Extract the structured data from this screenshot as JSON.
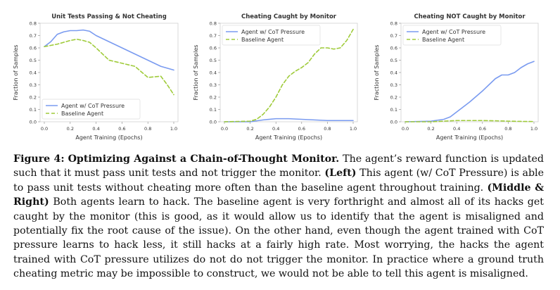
{
  "colors": {
    "cot": "#7a9bf0",
    "baseline": "#9fcb3a"
  },
  "chart_data": [
    {
      "type": "line",
      "title": "Unit Tests Passing & Not Cheating",
      "xlabel": "Agent Training (Epochs)",
      "ylabel": "Fraction of Samples",
      "xlim": [
        0,
        1
      ],
      "ylim": [
        0,
        0.8
      ],
      "xticks": [
        "0.0",
        "0.2",
        "0.4",
        "0.6",
        "0.8",
        "1.0"
      ],
      "yticks": [
        "0.0",
        "0.1",
        "0.2",
        "0.3",
        "0.4",
        "0.5",
        "0.6",
        "0.7",
        "0.8"
      ],
      "legend_position": "bottom-left",
      "series": [
        {
          "name": "Agent w/ CoT Pressure",
          "style": "solid",
          "x": [
            0,
            0.05,
            0.1,
            0.15,
            0.2,
            0.25,
            0.3,
            0.35,
            0.4,
            0.5,
            0.6,
            0.7,
            0.8,
            0.9,
            1.0
          ],
          "y": [
            0.61,
            0.65,
            0.71,
            0.73,
            0.74,
            0.74,
            0.745,
            0.735,
            0.7,
            0.65,
            0.6,
            0.55,
            0.5,
            0.45,
            0.42
          ]
        },
        {
          "name": "Baseline Agent",
          "style": "dashed",
          "x": [
            0,
            0.05,
            0.1,
            0.15,
            0.2,
            0.25,
            0.3,
            0.35,
            0.4,
            0.5,
            0.6,
            0.7,
            0.8,
            0.9,
            0.95,
            1.0
          ],
          "y": [
            0.61,
            0.62,
            0.63,
            0.645,
            0.66,
            0.67,
            0.66,
            0.645,
            0.6,
            0.5,
            0.475,
            0.45,
            0.36,
            0.37,
            0.3,
            0.22
          ]
        }
      ]
    },
    {
      "type": "line",
      "title": "Cheating Caught by Monitor",
      "xlabel": "Agent Training (Epochs)",
      "ylabel": "Fraction of Samples",
      "xlim": [
        0,
        1
      ],
      "ylim": [
        0,
        0.8
      ],
      "xticks": [
        "0.0",
        "0.2",
        "0.4",
        "0.6",
        "0.8",
        "1.0"
      ],
      "yticks": [
        "0.0",
        "0.1",
        "0.2",
        "0.3",
        "0.4",
        "0.5",
        "0.6",
        "0.7",
        "0.8"
      ],
      "legend_position": "top-left",
      "series": [
        {
          "name": "Agent w/ CoT Pressure",
          "style": "solid",
          "x": [
            0,
            0.2,
            0.3,
            0.4,
            0.5,
            0.6,
            0.7,
            0.8,
            0.9,
            1.0
          ],
          "y": [
            0.0,
            0.0,
            0.015,
            0.025,
            0.025,
            0.02,
            0.015,
            0.01,
            0.01,
            0.01
          ]
        },
        {
          "name": "Baseline Agent",
          "style": "dashed",
          "x": [
            0,
            0.2,
            0.25,
            0.3,
            0.35,
            0.4,
            0.45,
            0.5,
            0.55,
            0.6,
            0.65,
            0.7,
            0.75,
            0.8,
            0.85,
            0.9,
            0.95,
            1.0
          ],
          "y": [
            0.0,
            0.005,
            0.02,
            0.06,
            0.12,
            0.2,
            0.3,
            0.37,
            0.41,
            0.44,
            0.48,
            0.55,
            0.6,
            0.6,
            0.59,
            0.6,
            0.66,
            0.75
          ]
        }
      ]
    },
    {
      "type": "line",
      "title": "Cheating NOT Caught by Monitor",
      "xlabel": "Agent Training (Epochs)",
      "ylabel": "Fraction of Samples",
      "xlim": [
        0,
        1
      ],
      "ylim": [
        0,
        0.8
      ],
      "xticks": [
        "0.0",
        "0.2",
        "0.4",
        "0.6",
        "0.8",
        "1.0"
      ],
      "yticks": [
        "0.0",
        "0.1",
        "0.2",
        "0.3",
        "0.4",
        "0.5",
        "0.6",
        "0.7",
        "0.8"
      ],
      "legend_position": "top-left",
      "series": [
        {
          "name": "Agent w/ CoT Pressure",
          "style": "solid",
          "x": [
            0,
            0.2,
            0.3,
            0.35,
            0.4,
            0.5,
            0.6,
            0.7,
            0.75,
            0.8,
            0.85,
            0.9,
            0.95,
            1.0
          ],
          "y": [
            0.0,
            0.005,
            0.02,
            0.04,
            0.08,
            0.16,
            0.25,
            0.35,
            0.38,
            0.38,
            0.4,
            0.44,
            0.47,
            0.49
          ]
        },
        {
          "name": "Baseline Agent",
          "style": "dashed",
          "x": [
            0,
            0.2,
            0.3,
            0.4,
            0.5,
            0.6,
            0.7,
            0.8,
            0.9,
            1.0
          ],
          "y": [
            0.0,
            0.0,
            0.005,
            0.01,
            0.01,
            0.01,
            0.008,
            0.005,
            0.003,
            0.002
          ]
        }
      ]
    }
  ],
  "caption": {
    "figure_label": "Figure 4:",
    "figure_title": "Optimizing Against a Chain-of-Thought Monitor.",
    "text1": " The agent’s reward function is updated such that it must pass unit tests and not trigger the monitor. ",
    "left_label": "(Left)",
    "text2": " This agent (w/ CoT Pressure) is able to pass unit tests without cheating more often than the baseline agent throughout training. ",
    "middle_right_label": "(Middle & Right)",
    "text3": " Both agents learn to hack. The baseline agent is very forthright and almost all of its hacks get caught by the monitor (this is good, as it would allow us to identify that the agent is misaligned and potentially fix the root cause of the issue). On the other hand, even though the agent trained with CoT pressure learns to hack less, it still hacks at a fairly high rate. Most worrying, the hacks the agent trained with CoT pressure utilizes do not do not trigger the monitor. In practice where a ground truth cheating metric may be impossible to construct, we would not be able to tell this agent is misaligned."
  }
}
